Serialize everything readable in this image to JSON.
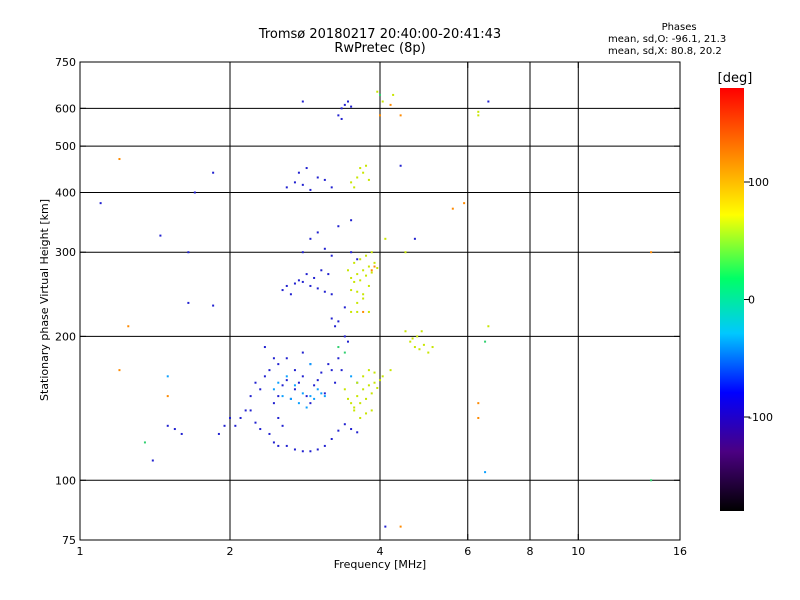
{
  "chart_data": {
    "type": "scatter",
    "title": "Tromsø 20180217 20:40:00-20:41:43",
    "subtitle": "RwPretec (8p)",
    "xlabel": "Frequency [MHz]",
    "ylabel": "Stationary phase Virtual Height [km]",
    "x_scale": "log",
    "y_scale": "log",
    "xlim": [
      1,
      16
    ],
    "ylim": [
      75,
      750
    ],
    "x_ticks": [
      1,
      2,
      4,
      6,
      8,
      10,
      16
    ],
    "x_tick_labels": [
      "1",
      "2",
      "4",
      "6",
      "8",
      "10",
      "16"
    ],
    "y_ticks": [
      75,
      100,
      200,
      300,
      400,
      500,
      600,
      750
    ],
    "y_tick_labels": [
      "75",
      "100",
      "200",
      "300",
      "400",
      "500",
      "600",
      "750"
    ],
    "x_gridlines": [
      2,
      4,
      6,
      8,
      10
    ],
    "y_gridlines": [
      100,
      200,
      300,
      400,
      500,
      600
    ],
    "grid": true,
    "stats": {
      "heading": "Phases",
      "line_o": "mean, sd,O: -96.1, 21.3",
      "line_x": "mean, sd,X:  80.8, 20.2"
    },
    "colorbar": {
      "label": "[deg]",
      "range": [
        -180,
        180
      ],
      "ticks": [
        100,
        0,
        -100
      ],
      "tick_labels": [
        "100",
        "0",
        "-100"
      ],
      "colors": [
        "#000000",
        "#4b0082",
        "#0000ff",
        "#00c8ff",
        "#00ff66",
        "#ffff00",
        "#ff8000",
        "#ff0000"
      ]
    },
    "series": [
      {
        "name": "",
        "phase": -100,
        "color": "#2020d0",
        "points": [
          [
            2.1,
            135
          ],
          [
            2.15,
            140
          ],
          [
            2.2,
            150
          ],
          [
            2.25,
            160
          ],
          [
            2.3,
            155
          ],
          [
            2.05,
            130
          ],
          [
            2.35,
            165
          ],
          [
            2.4,
            170
          ],
          [
            2.45,
            145
          ],
          [
            2.5,
            150
          ],
          [
            2.55,
            158
          ],
          [
            2.6,
            162
          ],
          [
            2.65,
            148
          ],
          [
            2.7,
            155
          ],
          [
            2.75,
            160
          ],
          [
            2.8,
            165
          ],
          [
            2.85,
            150
          ],
          [
            2.9,
            145
          ],
          [
            2.95,
            158
          ],
          [
            3.0,
            162
          ],
          [
            3.05,
            168
          ],
          [
            3.1,
            152
          ],
          [
            3.15,
            175
          ],
          [
            3.2,
            170
          ],
          [
            3.25,
            160
          ],
          [
            3.3,
            180
          ],
          [
            3.35,
            170
          ],
          [
            2.5,
            175
          ],
          [
            2.6,
            180
          ],
          [
            2.7,
            170
          ],
          [
            2.8,
            185
          ],
          [
            2.9,
            175
          ],
          [
            2.6,
            118
          ],
          [
            2.7,
            116
          ],
          [
            2.8,
            115
          ],
          [
            2.9,
            115
          ],
          [
            3.0,
            116
          ],
          [
            3.1,
            118
          ],
          [
            3.2,
            122
          ],
          [
            3.3,
            127
          ],
          [
            3.4,
            131
          ],
          [
            3.5,
            128
          ],
          [
            3.6,
            126
          ],
          [
            2.5,
            118
          ],
          [
            2.45,
            120
          ],
          [
            2.6,
            255
          ],
          [
            2.7,
            258
          ],
          [
            2.8,
            260
          ],
          [
            2.9,
            255
          ],
          [
            3.0,
            252
          ],
          [
            3.1,
            248
          ],
          [
            3.2,
            245
          ],
          [
            2.55,
            250
          ],
          [
            2.65,
            245
          ],
          [
            2.75,
            262
          ],
          [
            2.85,
            270
          ],
          [
            2.95,
            265
          ],
          [
            3.05,
            275
          ],
          [
            3.15,
            270
          ],
          [
            3.3,
            215
          ],
          [
            3.25,
            210
          ],
          [
            3.2,
            218
          ],
          [
            2.6,
            410
          ],
          [
            2.7,
            420
          ],
          [
            2.8,
            415
          ],
          [
            2.9,
            405
          ],
          [
            3.0,
            430
          ],
          [
            3.1,
            425
          ],
          [
            3.2,
            410
          ],
          [
            2.75,
            440
          ],
          [
            2.85,
            450
          ],
          [
            3.35,
            600
          ],
          [
            3.4,
            610
          ],
          [
            3.45,
            620
          ],
          [
            3.5,
            605
          ],
          [
            3.3,
            580
          ],
          [
            3.35,
            570
          ],
          [
            2.8,
            620
          ],
          [
            2.5,
            135
          ],
          [
            2.55,
            130
          ],
          [
            2.4,
            125
          ],
          [
            2.3,
            128
          ],
          [
            2.2,
            140
          ],
          [
            2.25,
            132
          ],
          [
            1.9,
            125
          ],
          [
            1.95,
            130
          ],
          [
            2.0,
            135
          ],
          [
            1.5,
            130
          ],
          [
            1.55,
            128
          ],
          [
            1.6,
            125
          ],
          [
            1.7,
            400
          ],
          [
            1.85,
            232
          ],
          [
            1.65,
            235
          ],
          [
            1.4,
            110
          ],
          [
            1.45,
            325
          ],
          [
            1.65,
            300
          ],
          [
            1.1,
            380
          ],
          [
            1.85,
            440
          ],
          [
            2.8,
            300
          ],
          [
            2.9,
            320
          ],
          [
            3.0,
            330
          ],
          [
            3.1,
            305
          ],
          [
            3.2,
            295
          ],
          [
            3.4,
            200
          ],
          [
            3.45,
            195
          ],
          [
            2.45,
            180
          ],
          [
            2.35,
            190
          ],
          [
            4.1,
            80
          ],
          [
            4.4,
            455
          ],
          [
            4.7,
            320
          ],
          [
            6.6,
            620
          ],
          [
            3.3,
            340
          ],
          [
            3.5,
            350
          ],
          [
            3.6,
            290
          ],
          [
            3.4,
            230
          ],
          [
            3.5,
            300
          ]
        ]
      },
      {
        "name": "",
        "phase": -30,
        "color": "#0aa0ff",
        "points": [
          [
            2.5,
            160
          ],
          [
            2.6,
            165
          ],
          [
            2.7,
            158
          ],
          [
            2.8,
            152
          ],
          [
            2.9,
            150
          ],
          [
            3.0,
            155
          ],
          [
            2.65,
            148
          ],
          [
            2.75,
            145
          ],
          [
            2.85,
            142
          ],
          [
            2.95,
            148
          ],
          [
            3.05,
            152
          ],
          [
            2.55,
            150
          ],
          [
            2.45,
            155
          ],
          [
            3.1,
            150
          ],
          [
            1.5,
            165
          ],
          [
            2.9,
            175
          ],
          [
            6.5,
            104
          ],
          [
            3.5,
            165
          ],
          [
            3.6,
            160
          ]
        ]
      },
      {
        "name": "",
        "phase": 90,
        "color": "#c8e600",
        "points": [
          [
            3.6,
            150
          ],
          [
            3.7,
            155
          ],
          [
            3.8,
            158
          ],
          [
            3.9,
            160
          ],
          [
            4.0,
            162
          ],
          [
            3.65,
            145
          ],
          [
            3.75,
            148
          ],
          [
            3.85,
            152
          ],
          [
            3.95,
            156
          ],
          [
            3.5,
            145
          ],
          [
            3.55,
            142
          ],
          [
            4.05,
            165
          ],
          [
            3.6,
            160
          ],
          [
            3.7,
            165
          ],
          [
            3.8,
            170
          ],
          [
            3.9,
            168
          ],
          [
            3.65,
            135
          ],
          [
            3.75,
            138
          ],
          [
            3.85,
            140
          ],
          [
            3.55,
            140
          ],
          [
            3.45,
            148
          ],
          [
            3.4,
            155
          ],
          [
            3.5,
            265
          ],
          [
            3.6,
            270
          ],
          [
            3.7,
            275
          ],
          [
            3.8,
            280
          ],
          [
            3.9,
            285
          ],
          [
            3.55,
            260
          ],
          [
            3.65,
            262
          ],
          [
            3.75,
            268
          ],
          [
            3.85,
            272
          ],
          [
            3.95,
            278
          ],
          [
            3.5,
            250
          ],
          [
            3.6,
            248
          ],
          [
            3.7,
            245
          ],
          [
            3.8,
            255
          ],
          [
            3.45,
            275
          ],
          [
            3.55,
            285
          ],
          [
            3.65,
            290
          ],
          [
            3.75,
            295
          ],
          [
            3.85,
            300
          ],
          [
            3.6,
            235
          ],
          [
            3.7,
            240
          ],
          [
            3.5,
            420
          ],
          [
            3.6,
            430
          ],
          [
            3.7,
            440
          ],
          [
            3.8,
            425
          ],
          [
            3.55,
            410
          ],
          [
            3.65,
            450
          ],
          [
            3.75,
            455
          ],
          [
            4.6,
            195
          ],
          [
            4.7,
            190
          ],
          [
            4.8,
            188
          ],
          [
            4.9,
            192
          ],
          [
            5.0,
            185
          ],
          [
            4.75,
            200
          ],
          [
            4.85,
            205
          ],
          [
            4.65,
            198
          ],
          [
            5.1,
            190
          ],
          [
            4.5,
            205
          ],
          [
            3.95,
            650
          ],
          [
            4.25,
            640
          ],
          [
            4.05,
            620
          ],
          [
            4.5,
            300
          ],
          [
            6.6,
            210
          ],
          [
            6.3,
            590
          ],
          [
            6.3,
            580
          ],
          [
            3.6,
            225
          ],
          [
            3.8,
            225
          ],
          [
            3.5,
            225
          ],
          [
            4.1,
            320
          ],
          [
            4.2,
            170
          ]
        ]
      },
      {
        "name": "",
        "phase": 150,
        "color": "#ff8a00",
        "points": [
          [
            3.9,
            280
          ],
          [
            3.85,
            275
          ],
          [
            3.7,
            225
          ],
          [
            4.2,
            610
          ],
          [
            4.4,
            580
          ],
          [
            4.0,
            580
          ],
          [
            6.3,
            145
          ],
          [
            6.3,
            135
          ],
          [
            1.2,
            170
          ],
          [
            1.5,
            150
          ],
          [
            1.25,
            210
          ],
          [
            5.6,
            370
          ],
          [
            5.9,
            380
          ],
          [
            14.0,
            300
          ],
          [
            4.4,
            80
          ],
          [
            1.2,
            470
          ]
        ]
      },
      {
        "name": "",
        "phase": 0,
        "color": "#30d070",
        "points": [
          [
            3.3,
            190
          ],
          [
            3.4,
            185
          ],
          [
            1.35,
            120
          ],
          [
            14.0,
            100
          ],
          [
            6.5,
            195
          ],
          [
            4.0,
            640
          ]
        ]
      }
    ]
  }
}
